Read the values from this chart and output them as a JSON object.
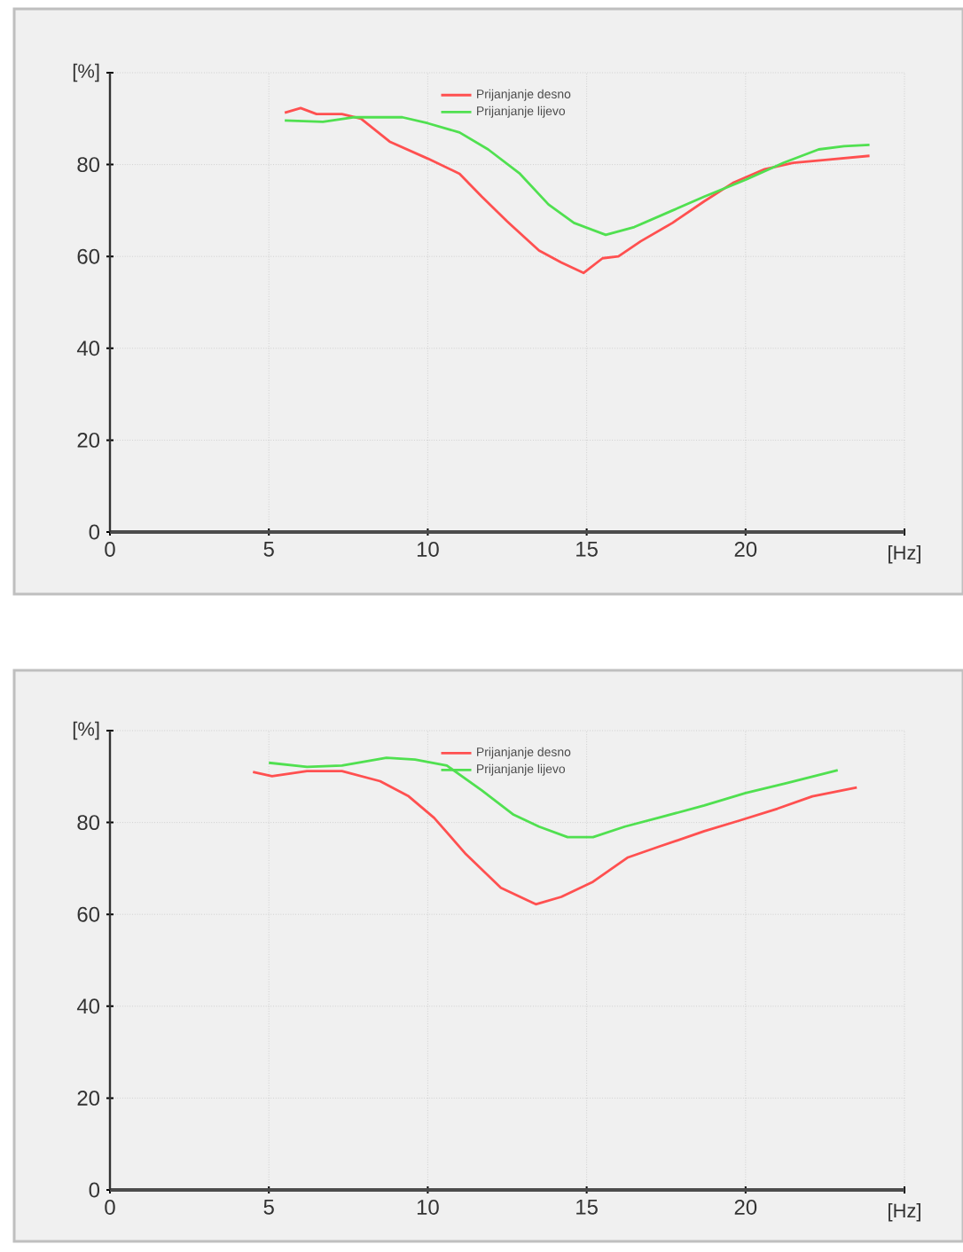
{
  "chart_data": [
    {
      "type": "line",
      "xlabel": "[Hz]",
      "ylabel": "[%]",
      "xlim": [
        0,
        25
      ],
      "ylim": [
        0,
        100
      ],
      "xticks": [
        0,
        5,
        10,
        15,
        20,
        {
          "value": 25,
          "label": null
        }
      ],
      "yticks": [
        0,
        20,
        40,
        60,
        80,
        {
          "value": 100,
          "label": null
        }
      ],
      "grid": true,
      "legend": "top",
      "marker": "none",
      "line_style": "solid",
      "series": [
        {
          "name": "Prijanjanje desno",
          "color": "#ff5050",
          "x": [
            5.5,
            6,
            6.5,
            7.3,
            7.9,
            8.8,
            10,
            11,
            11.7,
            12.5,
            13.5,
            14.2,
            14.9,
            15.5,
            16,
            16.7,
            17.7,
            18.7,
            19.6,
            20.6,
            21.5,
            22.5,
            23.9
          ],
          "values": [
            91.3,
            92.3,
            91,
            91,
            90,
            85,
            81.3,
            78,
            73,
            67.6,
            61.3,
            58.7,
            56.4,
            59.6,
            60,
            63.3,
            67.3,
            72,
            76,
            79,
            80.4,
            81,
            81.9
          ]
        },
        {
          "name": "Prijanjanje lijevo",
          "color": "#50e050",
          "x": [
            5.5,
            6.7,
            7.7,
            9.2,
            10,
            11,
            11.9,
            12.9,
            13.8,
            14.6,
            15.6,
            16.5,
            17.7,
            18.7,
            20,
            21.2,
            22.3,
            23.1,
            23.9
          ],
          "values": [
            89.6,
            89.3,
            90.3,
            90.3,
            89,
            87,
            83.3,
            78,
            71.3,
            67.3,
            64.7,
            66.4,
            70,
            73,
            76.7,
            80.4,
            83.3,
            84,
            84.3
          ]
        }
      ]
    },
    {
      "type": "line",
      "xlabel": "[Hz]",
      "ylabel": "[%]",
      "xlim": [
        0,
        25
      ],
      "ylim": [
        0,
        100
      ],
      "xticks": [
        0,
        5,
        10,
        15,
        20,
        {
          "value": 25,
          "label": null
        }
      ],
      "yticks": [
        0,
        20,
        40,
        60,
        80,
        {
          "value": 100,
          "label": null
        }
      ],
      "grid": true,
      "legend": "top",
      "marker": "none",
      "line_style": "solid",
      "series": [
        {
          "name": "Prijanjanje desno",
          "color": "#ff5050",
          "x": [
            4.5,
            5.1,
            6.2,
            7.3,
            8.5,
            9.4,
            10.2,
            11.2,
            12.3,
            13.4,
            14.2,
            15.2,
            16.3,
            17.3,
            18.7,
            19.8,
            21,
            22.1,
            23.5
          ],
          "values": [
            91,
            90.1,
            91.2,
            91.2,
            89,
            85.7,
            81,
            73.1,
            65.8,
            62.2,
            63.8,
            67.1,
            72.4,
            74.8,
            78.1,
            80.4,
            83,
            85.7,
            87.6
          ]
        },
        {
          "name": "Prijanjanje lijevo",
          "color": "#50e050",
          "x": [
            5,
            6.2,
            7.3,
            8.7,
            9.6,
            10.6,
            11.7,
            12.7,
            13.5,
            14.4,
            15.2,
            16.2,
            17.3,
            18.7,
            20,
            21.3,
            22.9
          ],
          "values": [
            93,
            92.1,
            92.4,
            94.1,
            93.7,
            92.4,
            87,
            81.7,
            79.1,
            76.8,
            76.8,
            79.1,
            81.1,
            83.7,
            86.4,
            88.6,
            91.4
          ]
        }
      ]
    }
  ]
}
